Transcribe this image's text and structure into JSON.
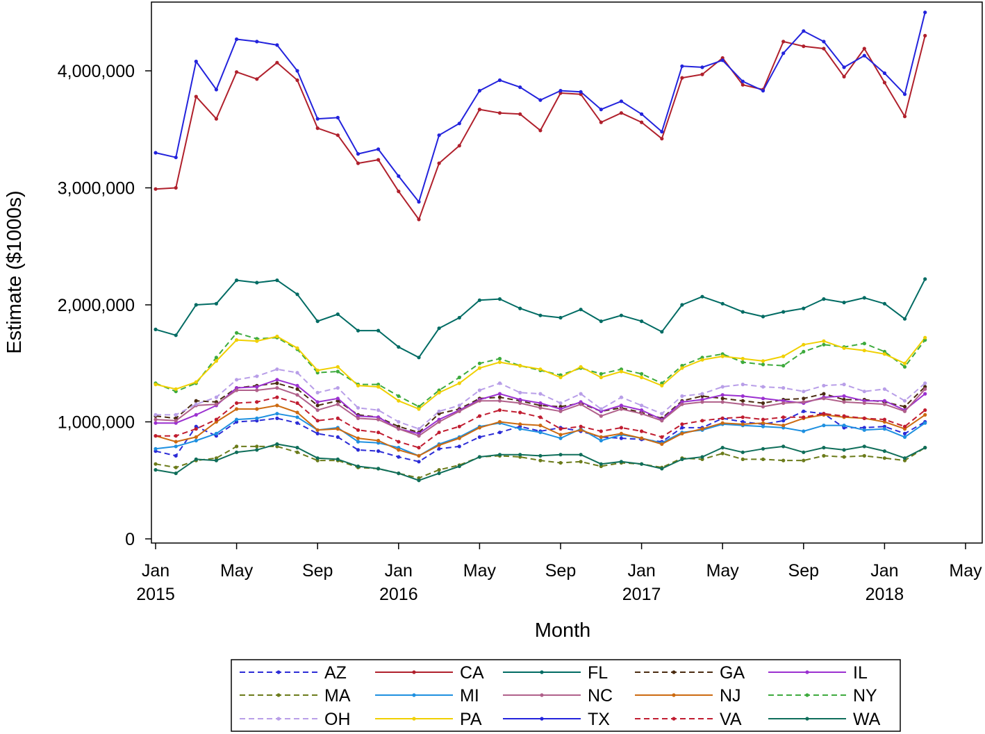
{
  "chart_data": {
    "type": "line",
    "title": "",
    "xlabel": "Month",
    "ylabel": "Estimate ($1000s)",
    "ylim": [
      0,
      4500000
    ],
    "yticks": [
      0,
      1000000,
      2000000,
      3000000,
      4000000
    ],
    "ytick_labels": [
      "0",
      "1,000,000",
      "2,000,000",
      "3,000,000",
      "4,000,000"
    ],
    "x_range": [
      0,
      40
    ],
    "xticks": [
      0,
      4,
      8,
      12,
      16,
      20,
      24,
      28,
      32,
      36,
      40
    ],
    "xtick_labels": [
      [
        "Jan",
        "2015"
      ],
      [
        "May",
        ""
      ],
      [
        "Sep",
        ""
      ],
      [
        "Jan",
        "2016"
      ],
      [
        "May",
        ""
      ],
      [
        "Sep",
        ""
      ],
      [
        "Jan",
        "2017"
      ],
      [
        "May",
        ""
      ],
      [
        "Sep",
        ""
      ],
      [
        "Jan",
        "2018"
      ],
      [
        "May",
        ""
      ]
    ],
    "x": [
      "2015-01",
      "2015-02",
      "2015-03",
      "2015-04",
      "2015-05",
      "2015-06",
      "2015-07",
      "2015-08",
      "2015-09",
      "2015-10",
      "2015-11",
      "2015-12",
      "2016-01",
      "2016-02",
      "2016-03",
      "2016-04",
      "2016-05",
      "2016-06",
      "2016-07",
      "2016-08",
      "2016-09",
      "2016-10",
      "2016-11",
      "2016-12",
      "2017-01",
      "2017-02",
      "2017-03",
      "2017-04",
      "2017-05",
      "2017-06",
      "2017-07",
      "2017-08",
      "2017-09",
      "2017-10",
      "2017-11",
      "2017-12",
      "2018-01",
      "2018-02",
      "2018-03"
    ],
    "grid": false,
    "legend_position": "bottom",
    "series": [
      {
        "name": "AZ",
        "color": "#2b2bd6",
        "dash": true,
        "values": [
          750000,
          710000,
          960000,
          880000,
          1000000,
          1010000,
          1030000,
          990000,
          900000,
          870000,
          760000,
          750000,
          700000,
          660000,
          770000,
          790000,
          870000,
          910000,
          960000,
          920000,
          950000,
          920000,
          870000,
          860000,
          850000,
          830000,
          950000,
          950000,
          1030000,
          1000000,
          980000,
          1010000,
          1090000,
          1070000,
          950000,
          950000,
          960000,
          900000,
          1000000
        ]
      },
      {
        "name": "CA",
        "color": "#b0202c",
        "dash": false,
        "values": [
          2990000,
          3000000,
          3780000,
          3590000,
          3990000,
          3930000,
          4070000,
          3920000,
          3510000,
          3450000,
          3210000,
          3240000,
          2970000,
          2730000,
          3210000,
          3360000,
          3670000,
          3640000,
          3630000,
          3490000,
          3810000,
          3800000,
          3560000,
          3640000,
          3560000,
          3420000,
          3940000,
          3970000,
          4110000,
          3880000,
          3840000,
          4250000,
          4210000,
          4190000,
          3950000,
          4190000,
          3900000,
          3610000,
          4300000
        ]
      },
      {
        "name": "FL",
        "color": "#006b63",
        "dash": false,
        "values": [
          1790000,
          1740000,
          2000000,
          2010000,
          2210000,
          2190000,
          2210000,
          2090000,
          1860000,
          1920000,
          1780000,
          1780000,
          1640000,
          1550000,
          1800000,
          1890000,
          2040000,
          2050000,
          1970000,
          1910000,
          1890000,
          1960000,
          1860000,
          1910000,
          1860000,
          1770000,
          2000000,
          2070000,
          2010000,
          1940000,
          1900000,
          1940000,
          1970000,
          2050000,
          2020000,
          2060000,
          2010000,
          1880000,
          2220000
        ]
      },
      {
        "name": "GA",
        "color": "#4a2b10",
        "dash": true,
        "values": [
          1050000,
          1030000,
          1180000,
          1170000,
          1290000,
          1310000,
          1330000,
          1280000,
          1140000,
          1180000,
          1060000,
          1040000,
          960000,
          910000,
          1070000,
          1110000,
          1200000,
          1210000,
          1180000,
          1140000,
          1130000,
          1160000,
          1090000,
          1120000,
          1080000,
          1030000,
          1180000,
          1220000,
          1200000,
          1180000,
          1160000,
          1190000,
          1200000,
          1240000,
          1190000,
          1190000,
          1170000,
          1130000,
          1300000
        ]
      },
      {
        "name": "IL",
        "color": "#9b30d0",
        "dash": false,
        "values": [
          990000,
          990000,
          1060000,
          1140000,
          1290000,
          1300000,
          1360000,
          1310000,
          1170000,
          1200000,
          1050000,
          1040000,
          940000,
          900000,
          1020000,
          1100000,
          1190000,
          1240000,
          1190000,
          1160000,
          1110000,
          1170000,
          1090000,
          1140000,
          1100000,
          1020000,
          1170000,
          1190000,
          1230000,
          1220000,
          1200000,
          1180000,
          1160000,
          1210000,
          1220000,
          1180000,
          1180000,
          1100000,
          1240000
        ]
      },
      {
        "name": "MA",
        "color": "#6b7b1a",
        "dash": true,
        "values": [
          640000,
          610000,
          670000,
          690000,
          790000,
          790000,
          790000,
          740000,
          670000,
          670000,
          610000,
          600000,
          560000,
          520000,
          590000,
          630000,
          700000,
          710000,
          700000,
          670000,
          650000,
          660000,
          620000,
          650000,
          640000,
          610000,
          690000,
          680000,
          730000,
          680000,
          680000,
          670000,
          670000,
          710000,
          700000,
          710000,
          690000,
          670000,
          780000
        ]
      },
      {
        "name": "MI",
        "color": "#1e90e0",
        "dash": false,
        "values": [
          770000,
          790000,
          840000,
          900000,
          1020000,
          1030000,
          1070000,
          1040000,
          930000,
          950000,
          830000,
          820000,
          780000,
          710000,
          810000,
          870000,
          960000,
          990000,
          940000,
          910000,
          860000,
          940000,
          840000,
          890000,
          860000,
          820000,
          910000,
          930000,
          980000,
          970000,
          960000,
          950000,
          920000,
          970000,
          970000,
          930000,
          940000,
          870000,
          990000
        ]
      },
      {
        "name": "NC",
        "color": "#b0608a",
        "dash": false,
        "values": [
          1020000,
          1010000,
          1140000,
          1150000,
          1270000,
          1270000,
          1290000,
          1230000,
          1100000,
          1150000,
          1030000,
          1020000,
          940000,
          880000,
          1000000,
          1090000,
          1180000,
          1180000,
          1160000,
          1120000,
          1090000,
          1150000,
          1050000,
          1110000,
          1070000,
          1010000,
          1150000,
          1170000,
          1170000,
          1150000,
          1130000,
          1160000,
          1170000,
          1200000,
          1170000,
          1160000,
          1150000,
          1090000,
          1280000
        ]
      },
      {
        "name": "NJ",
        "color": "#cc6a10",
        "dash": false,
        "values": [
          880000,
          830000,
          870000,
          1000000,
          1110000,
          1110000,
          1140000,
          1080000,
          930000,
          940000,
          860000,
          840000,
          760000,
          710000,
          800000,
          860000,
          950000,
          1000000,
          980000,
          970000,
          890000,
          930000,
          870000,
          900000,
          860000,
          810000,
          900000,
          940000,
          990000,
          980000,
          990000,
          970000,
          1030000,
          1060000,
          1040000,
          1030000,
          1000000,
          940000,
          1060000
        ]
      },
      {
        "name": "NY",
        "color": "#3daa3d",
        "dash": true,
        "values": [
          1330000,
          1260000,
          1330000,
          1550000,
          1760000,
          1710000,
          1720000,
          1620000,
          1420000,
          1430000,
          1320000,
          1320000,
          1220000,
          1130000,
          1270000,
          1380000,
          1500000,
          1540000,
          1480000,
          1440000,
          1400000,
          1460000,
          1410000,
          1450000,
          1410000,
          1330000,
          1480000,
          1550000,
          1580000,
          1510000,
          1490000,
          1480000,
          1600000,
          1660000,
          1640000,
          1670000,
          1600000,
          1470000,
          1700000
        ]
      },
      {
        "name": "OH",
        "color": "#b89ee8",
        "dash": true,
        "values": [
          1060000,
          1060000,
          1150000,
          1210000,
          1360000,
          1390000,
          1450000,
          1420000,
          1250000,
          1290000,
          1120000,
          1100000,
          1000000,
          940000,
          1090000,
          1140000,
          1270000,
          1330000,
          1250000,
          1240000,
          1160000,
          1240000,
          1110000,
          1210000,
          1140000,
          1070000,
          1220000,
          1240000,
          1300000,
          1320000,
          1300000,
          1290000,
          1260000,
          1310000,
          1320000,
          1260000,
          1280000,
          1180000,
          1330000
        ]
      },
      {
        "name": "PA",
        "color": "#f0d000",
        "dash": false,
        "values": [
          1320000,
          1280000,
          1340000,
          1520000,
          1700000,
          1690000,
          1730000,
          1630000,
          1440000,
          1470000,
          1310000,
          1300000,
          1180000,
          1110000,
          1250000,
          1330000,
          1460000,
          1510000,
          1480000,
          1450000,
          1380000,
          1470000,
          1380000,
          1430000,
          1380000,
          1310000,
          1460000,
          1530000,
          1560000,
          1540000,
          1520000,
          1560000,
          1660000,
          1690000,
          1630000,
          1610000,
          1580000,
          1500000,
          1720000
        ]
      },
      {
        "name": "TX",
        "color": "#2323dc",
        "dash": false,
        "values": [
          3300000,
          3260000,
          4080000,
          3840000,
          4270000,
          4250000,
          4220000,
          4000000,
          3590000,
          3600000,
          3290000,
          3330000,
          3100000,
          2880000,
          3450000,
          3550000,
          3830000,
          3920000,
          3860000,
          3750000,
          3830000,
          3820000,
          3670000,
          3740000,
          3630000,
          3480000,
          4040000,
          4030000,
          4090000,
          3910000,
          3830000,
          4150000,
          4340000,
          4250000,
          4030000,
          4130000,
          3980000,
          3800000,
          4500000
        ]
      },
      {
        "name": "VA",
        "color": "#c01c30",
        "dash": true,
        "values": [
          880000,
          880000,
          940000,
          1020000,
          1160000,
          1170000,
          1210000,
          1160000,
          1010000,
          1030000,
          930000,
          910000,
          830000,
          780000,
          910000,
          960000,
          1050000,
          1100000,
          1080000,
          1040000,
          940000,
          960000,
          920000,
          950000,
          920000,
          870000,
          980000,
          1010000,
          1030000,
          1040000,
          1020000,
          1040000,
          1040000,
          1070000,
          1050000,
          1030000,
          1020000,
          960000,
          1100000
        ]
      },
      {
        "name": "WA",
        "color": "#0f6e5a",
        "dash": false,
        "values": [
          590000,
          560000,
          680000,
          670000,
          740000,
          760000,
          810000,
          780000,
          690000,
          680000,
          620000,
          600000,
          560000,
          500000,
          560000,
          620000,
          700000,
          720000,
          720000,
          710000,
          720000,
          720000,
          640000,
          660000,
          640000,
          600000,
          680000,
          700000,
          780000,
          740000,
          770000,
          790000,
          740000,
          780000,
          760000,
          790000,
          750000,
          690000,
          780000
        ]
      }
    ]
  }
}
